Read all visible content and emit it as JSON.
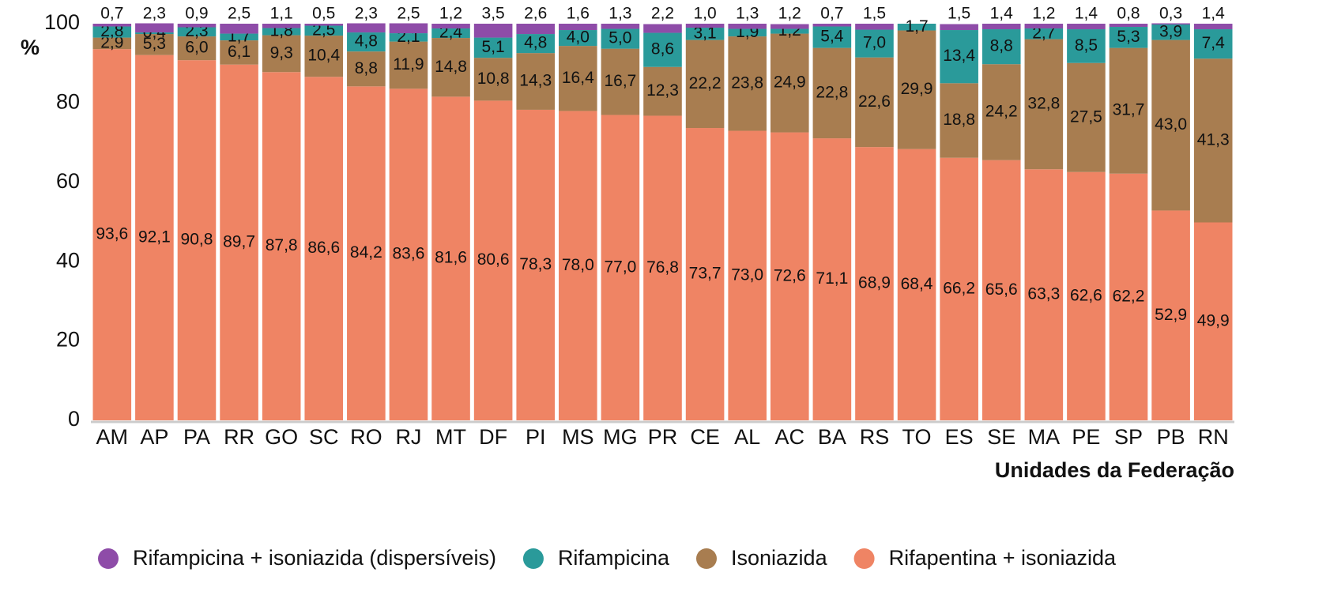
{
  "chart_data": {
    "type": "stacked_bar",
    "y_label": "%",
    "x_label": "Unidades da Federação",
    "categories": [
      "AM",
      "AP",
      "PA",
      "RR",
      "GO",
      "SC",
      "RO",
      "RJ",
      "MT",
      "DF",
      "PI",
      "MS",
      "MG",
      "PR",
      "CE",
      "AL",
      "AC",
      "BA",
      "RS",
      "TO",
      "ES",
      "SE",
      "MA",
      "PE",
      "SP",
      "PB",
      "RN"
    ],
    "ylim": [
      0,
      100
    ],
    "yticks": [
      0,
      20,
      40,
      60,
      80,
      100
    ],
    "legend": "bottom",
    "series": [
      {
        "name": "Rifampicina + isoniazida (dispersíveis)",
        "color": "#8e4ca8",
        "values": [
          0.7,
          2.3,
          0.9,
          2.5,
          1.1,
          0.5,
          2.3,
          2.5,
          1.2,
          3.5,
          2.6,
          1.6,
          1.3,
          2.2,
          1.0,
          1.3,
          1.2,
          0.7,
          1.5,
          0,
          1.5,
          1.4,
          1.2,
          1.4,
          0.8,
          0.3,
          1.4
        ],
        "value_labels": [
          "0,7",
          "2,3",
          "0,9",
          "2,5",
          "1,1",
          "0,5",
          "2,3",
          "2,5",
          "1,2",
          "3,5",
          "2,6",
          "1,6",
          "1,3",
          "2,2",
          "1,0",
          "1,3",
          "1,2",
          "0,7",
          "1,5",
          null,
          "1,5",
          "1,4",
          "1,2",
          "1,4",
          "0,8",
          "0,3",
          "1,4"
        ]
      },
      {
        "name": "Rifampicina",
        "color": "#2a9a9a",
        "values": [
          2.8,
          0.4,
          2.3,
          1.7,
          1.8,
          2.5,
          4.8,
          2.1,
          2.4,
          5.1,
          4.8,
          4.0,
          5.0,
          8.6,
          3.1,
          1.9,
          1.2,
          5.4,
          7.0,
          1.7,
          13.4,
          8.8,
          2.7,
          8.5,
          5.3,
          3.9,
          7.4
        ],
        "value_labels": [
          "2,8",
          "0,4",
          "2,3",
          "1,7",
          "1,8",
          "2,5",
          "4,8",
          "2,1",
          "2,4",
          "5,1",
          "4,8",
          "4,0",
          "5,0",
          "8,6",
          "3,1",
          "1,9",
          "1,2",
          "5,4",
          "7,0",
          "1,7",
          "13,4",
          "8,8",
          "2,7",
          "8,5",
          "5,3",
          "3,9",
          "7,4"
        ]
      },
      {
        "name": "Isoniazida",
        "color": "#a87d50",
        "values": [
          2.9,
          5.3,
          6.0,
          6.1,
          9.3,
          10.4,
          8.8,
          11.9,
          14.8,
          10.8,
          14.3,
          16.4,
          16.7,
          12.3,
          22.2,
          23.8,
          24.9,
          22.8,
          22.6,
          29.9,
          18.8,
          24.2,
          32.8,
          27.5,
          31.7,
          43.0,
          41.3
        ],
        "value_labels": [
          "2,9",
          "5,3",
          "6,0",
          "6,1",
          "9,3",
          "10,4",
          "8,8",
          "11,9",
          "14,8",
          "10,8",
          "14,3",
          "16,4",
          "16,7",
          "12,3",
          "22,2",
          "23,8",
          "24,9",
          "22,8",
          "22,6",
          "29,9",
          "18,8",
          "24,2",
          "32,8",
          "27,5",
          "31,7",
          "43,0",
          "41,3"
        ]
      },
      {
        "name": "Rifapentina + isoniazida",
        "color": "#ef8464",
        "values": [
          93.6,
          92.1,
          90.8,
          89.7,
          87.8,
          86.6,
          84.2,
          83.6,
          81.6,
          80.6,
          78.3,
          78.0,
          77.0,
          76.8,
          73.7,
          73.0,
          72.6,
          71.1,
          68.9,
          68.4,
          66.2,
          65.6,
          63.3,
          62.6,
          62.2,
          52.9,
          49.9
        ],
        "value_labels": [
          "93,6",
          "92,1",
          "90,8",
          "89,7",
          "87,8",
          "86,6",
          "84,2",
          "83,6",
          "81,6",
          "80,6",
          "78,3",
          "78,0",
          "77,0",
          "76,8",
          "73,7",
          "73,0",
          "72,6",
          "71,1",
          "68,9",
          "68,4",
          "66,2",
          "65,6",
          "63,3",
          "62,6",
          "62,2",
          "52,9",
          "49,9"
        ]
      }
    ]
  }
}
